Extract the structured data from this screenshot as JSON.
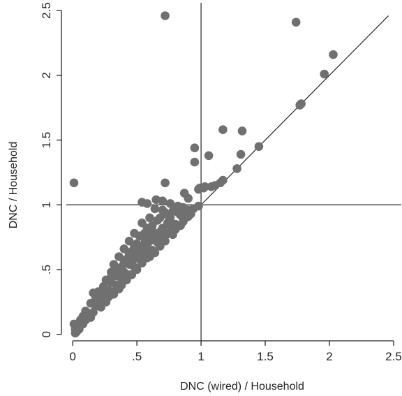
{
  "chart_data": {
    "type": "scatter",
    "title": "",
    "xlabel": "DNC (wired) / Household",
    "ylabel": "DNC / Household",
    "xlim": [
      -0.05,
      2.56
    ],
    "ylim": [
      -0.05,
      2.56
    ],
    "x_ticks": [
      {
        "value": 0,
        "label": "0"
      },
      {
        "value": 0.5,
        "label": ".5"
      },
      {
        "value": 1,
        "label": "1"
      },
      {
        "value": 1.5,
        "label": "1.5"
      },
      {
        "value": 2,
        "label": "2"
      },
      {
        "value": 2.5,
        "label": "2.5"
      }
    ],
    "y_ticks": [
      {
        "value": 0,
        "label": "0"
      },
      {
        "value": 0.5,
        "label": ".5"
      },
      {
        "value": 1,
        "label": "1"
      },
      {
        "value": 1.5,
        "label": "1.5"
      },
      {
        "value": 2,
        "label": "2"
      },
      {
        "value": 2.5,
        "label": "2.5"
      }
    ],
    "reference_lines": {
      "vertical_x": 1,
      "horizontal_y": 1,
      "diagonal": [
        [
          0,
          0
        ],
        [
          2.46,
          2.46
        ]
      ]
    },
    "grid": false,
    "legend": "none",
    "marker_color": "#707070",
    "line_color": "#222222",
    "points": [
      [
        0.72,
        2.46
      ],
      [
        1.74,
        2.41
      ],
      [
        2.03,
        2.16
      ],
      [
        1.96,
        2.01
      ],
      [
        1.78,
        1.78
      ],
      [
        1.77,
        1.77
      ],
      [
        1.17,
        1.58
      ],
      [
        1.32,
        1.57
      ],
      [
        1.45,
        1.45
      ],
      [
        0.95,
        1.44
      ],
      [
        1.31,
        1.39
      ],
      [
        1.06,
        1.38
      ],
      [
        0.95,
        1.33
      ],
      [
        1.28,
        1.28
      ],
      [
        0.01,
        1.17
      ],
      [
        0.72,
        1.17
      ],
      [
        0.99,
        1.13
      ],
      [
        1.03,
        1.14
      ],
      [
        1.08,
        1.14
      ],
      [
        1.11,
        1.15
      ],
      [
        1.15,
        1.17
      ],
      [
        1.17,
        1.19
      ],
      [
        0.87,
        1.09
      ],
      [
        0.9,
        1.05
      ],
      [
        0.98,
        1.12
      ],
      [
        1.02,
        1.13
      ],
      [
        0.54,
        1.02
      ],
      [
        0.58,
        1.01
      ],
      [
        0.65,
        1.04
      ],
      [
        0.7,
        1.03
      ],
      [
        0.76,
        1.01
      ],
      [
        0.82,
        0.99
      ],
      [
        0.86,
        0.98
      ],
      [
        0.9,
        0.96
      ],
      [
        0.94,
        0.97
      ],
      [
        0.98,
        0.99
      ],
      [
        0.64,
        0.97
      ],
      [
        0.72,
        0.94
      ],
      [
        0.78,
        0.95
      ],
      [
        0.84,
        0.92
      ],
      [
        0.88,
        0.9
      ],
      [
        0.92,
        0.93
      ],
      [
        0.6,
        0.9
      ],
      [
        0.66,
        0.88
      ],
      [
        0.74,
        0.86
      ],
      [
        0.8,
        0.85
      ],
      [
        0.86,
        0.87
      ],
      [
        0.9,
        0.91
      ],
      [
        0.54,
        0.86
      ],
      [
        0.58,
        0.82
      ],
      [
        0.62,
        0.8
      ],
      [
        0.68,
        0.79
      ],
      [
        0.74,
        0.78
      ],
      [
        0.8,
        0.81
      ],
      [
        0.84,
        0.84
      ],
      [
        0.48,
        0.78
      ],
      [
        0.52,
        0.76
      ],
      [
        0.56,
        0.74
      ],
      [
        0.6,
        0.72
      ],
      [
        0.66,
        0.71
      ],
      [
        0.72,
        0.72
      ],
      [
        0.78,
        0.77
      ],
      [
        0.44,
        0.72
      ],
      [
        0.48,
        0.68
      ],
      [
        0.52,
        0.66
      ],
      [
        0.56,
        0.64
      ],
      [
        0.62,
        0.65
      ],
      [
        0.68,
        0.68
      ],
      [
        0.4,
        0.66
      ],
      [
        0.44,
        0.62
      ],
      [
        0.48,
        0.6
      ],
      [
        0.52,
        0.58
      ],
      [
        0.58,
        0.59
      ],
      [
        0.64,
        0.63
      ],
      [
        0.36,
        0.6
      ],
      [
        0.4,
        0.56
      ],
      [
        0.44,
        0.54
      ],
      [
        0.48,
        0.52
      ],
      [
        0.54,
        0.55
      ],
      [
        0.6,
        0.6
      ],
      [
        0.32,
        0.54
      ],
      [
        0.36,
        0.5
      ],
      [
        0.4,
        0.48
      ],
      [
        0.44,
        0.46
      ],
      [
        0.5,
        0.5
      ],
      [
        0.3,
        0.48
      ],
      [
        0.34,
        0.45
      ],
      [
        0.38,
        0.43
      ],
      [
        0.42,
        0.42
      ],
      [
        0.46,
        0.46
      ],
      [
        0.26,
        0.42
      ],
      [
        0.3,
        0.4
      ],
      [
        0.34,
        0.38
      ],
      [
        0.38,
        0.38
      ],
      [
        0.42,
        0.43
      ],
      [
        0.24,
        0.37
      ],
      [
        0.28,
        0.34
      ],
      [
        0.32,
        0.33
      ],
      [
        0.36,
        0.35
      ],
      [
        0.2,
        0.33
      ],
      [
        0.16,
        0.32
      ],
      [
        0.24,
        0.31
      ],
      [
        0.28,
        0.29
      ],
      [
        0.32,
        0.31
      ],
      [
        0.18,
        0.28
      ],
      [
        0.22,
        0.26
      ],
      [
        0.26,
        0.25
      ],
      [
        0.14,
        0.24
      ],
      [
        0.1,
        0.18
      ],
      [
        0.18,
        0.22
      ],
      [
        0.22,
        0.21
      ],
      [
        0.08,
        0.14
      ],
      [
        0.12,
        0.15
      ],
      [
        0.16,
        0.17
      ],
      [
        0.06,
        0.11
      ],
      [
        0.1,
        0.11
      ],
      [
        0.14,
        0.13
      ],
      [
        0.01,
        0.08
      ],
      [
        0.04,
        0.07
      ],
      [
        0.08,
        0.08
      ],
      [
        0.02,
        0.04
      ],
      [
        0.05,
        0.04
      ],
      [
        0.02,
        0.01
      ],
      [
        0.03,
        0.02
      ],
      [
        0.42,
        0.58
      ],
      [
        0.46,
        0.64
      ],
      [
        0.5,
        0.7
      ],
      [
        0.56,
        0.78
      ],
      [
        0.62,
        0.84
      ],
      [
        0.68,
        0.9
      ],
      [
        0.7,
        0.96
      ],
      [
        0.76,
        0.9
      ],
      [
        0.82,
        0.94
      ],
      [
        0.38,
        0.52
      ],
      [
        0.34,
        0.48
      ],
      [
        0.3,
        0.44
      ],
      [
        0.56,
        0.7
      ],
      [
        0.62,
        0.76
      ],
      [
        0.7,
        0.82
      ],
      [
        0.76,
        0.84
      ],
      [
        0.46,
        0.56
      ],
      [
        0.52,
        0.62
      ],
      [
        0.58,
        0.68
      ],
      [
        0.64,
        0.74
      ],
      [
        0.7,
        0.76
      ],
      [
        0.74,
        0.92
      ],
      [
        0.8,
        0.96
      ],
      [
        0.88,
        0.95
      ]
    ]
  }
}
